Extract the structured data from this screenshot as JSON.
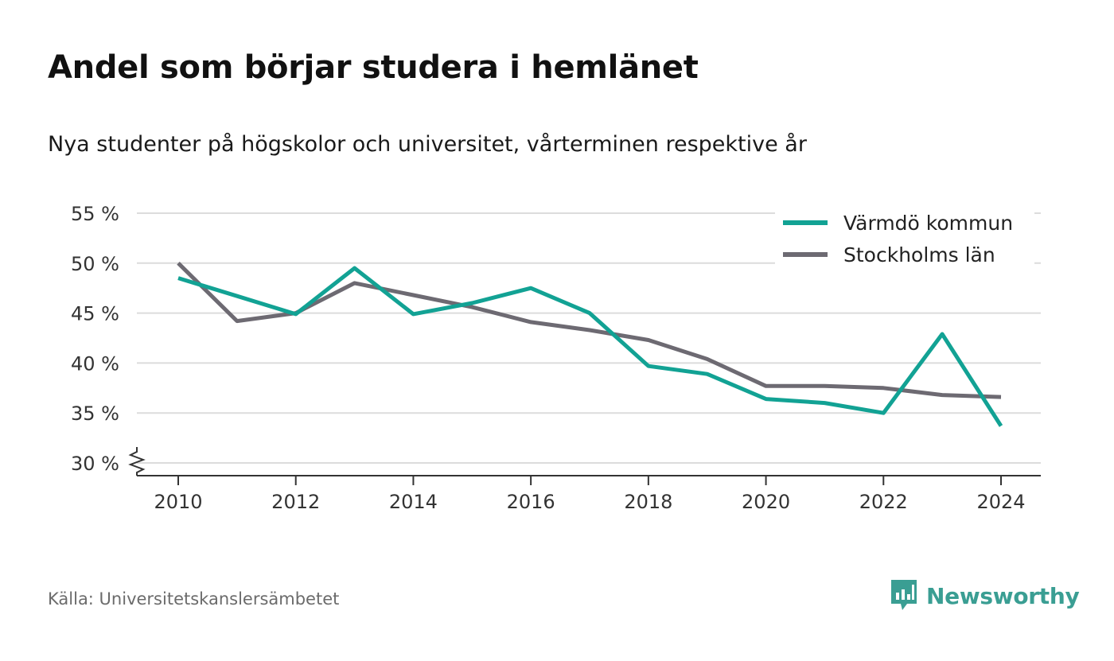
{
  "header": {
    "title": "Andel som börjar studera i hemlänet",
    "subtitle": "Nya studenter på högskolor och universitet, vårterminen respektive år"
  },
  "footer": {
    "source": "Källa: Universitetskanslersämbetet",
    "brand": "Newsworthy",
    "brand_icon": "bar-chart-speech-bubble-icon"
  },
  "chart_data": {
    "type": "line",
    "title": "Andel som börjar studera i hemlänet",
    "subtitle": "Nya studenter på högskolor och universitet, vårterminen respektive år",
    "x": [
      2010,
      2011,
      2012,
      2013,
      2014,
      2015,
      2016,
      2017,
      2018,
      2019,
      2020,
      2021,
      2022,
      2023,
      2024
    ],
    "series": [
      {
        "name": "Värmdö kommun",
        "color": "#12a294",
        "values": [
          48.5,
          46.7,
          44.9,
          49.5,
          44.9,
          46.0,
          47.5,
          45.0,
          39.7,
          38.9,
          36.4,
          36.0,
          35.0,
          42.9,
          33.7
        ]
      },
      {
        "name": "Stockholms län",
        "color": "#6d6a72",
        "values": [
          50.0,
          44.2,
          45.0,
          48.0,
          46.8,
          45.6,
          44.1,
          43.3,
          42.3,
          40.4,
          37.7,
          37.7,
          37.5,
          36.8,
          36.6
        ]
      }
    ],
    "ylim": [
      30,
      55
    ],
    "yticks": [
      30,
      35,
      40,
      45,
      50,
      55
    ],
    "ytick_labels": [
      "30 %",
      "35 %",
      "40 %",
      "45 %",
      "50 %",
      "55 %"
    ],
    "xticks": [
      2010,
      2012,
      2014,
      2016,
      2018,
      2020,
      2022,
      2024
    ],
    "xtick_labels": [
      "2010",
      "2012",
      "2014",
      "2016",
      "2018",
      "2020",
      "2022",
      "2024"
    ],
    "grid": true,
    "legend_position": "top-right",
    "axis_break": true
  }
}
